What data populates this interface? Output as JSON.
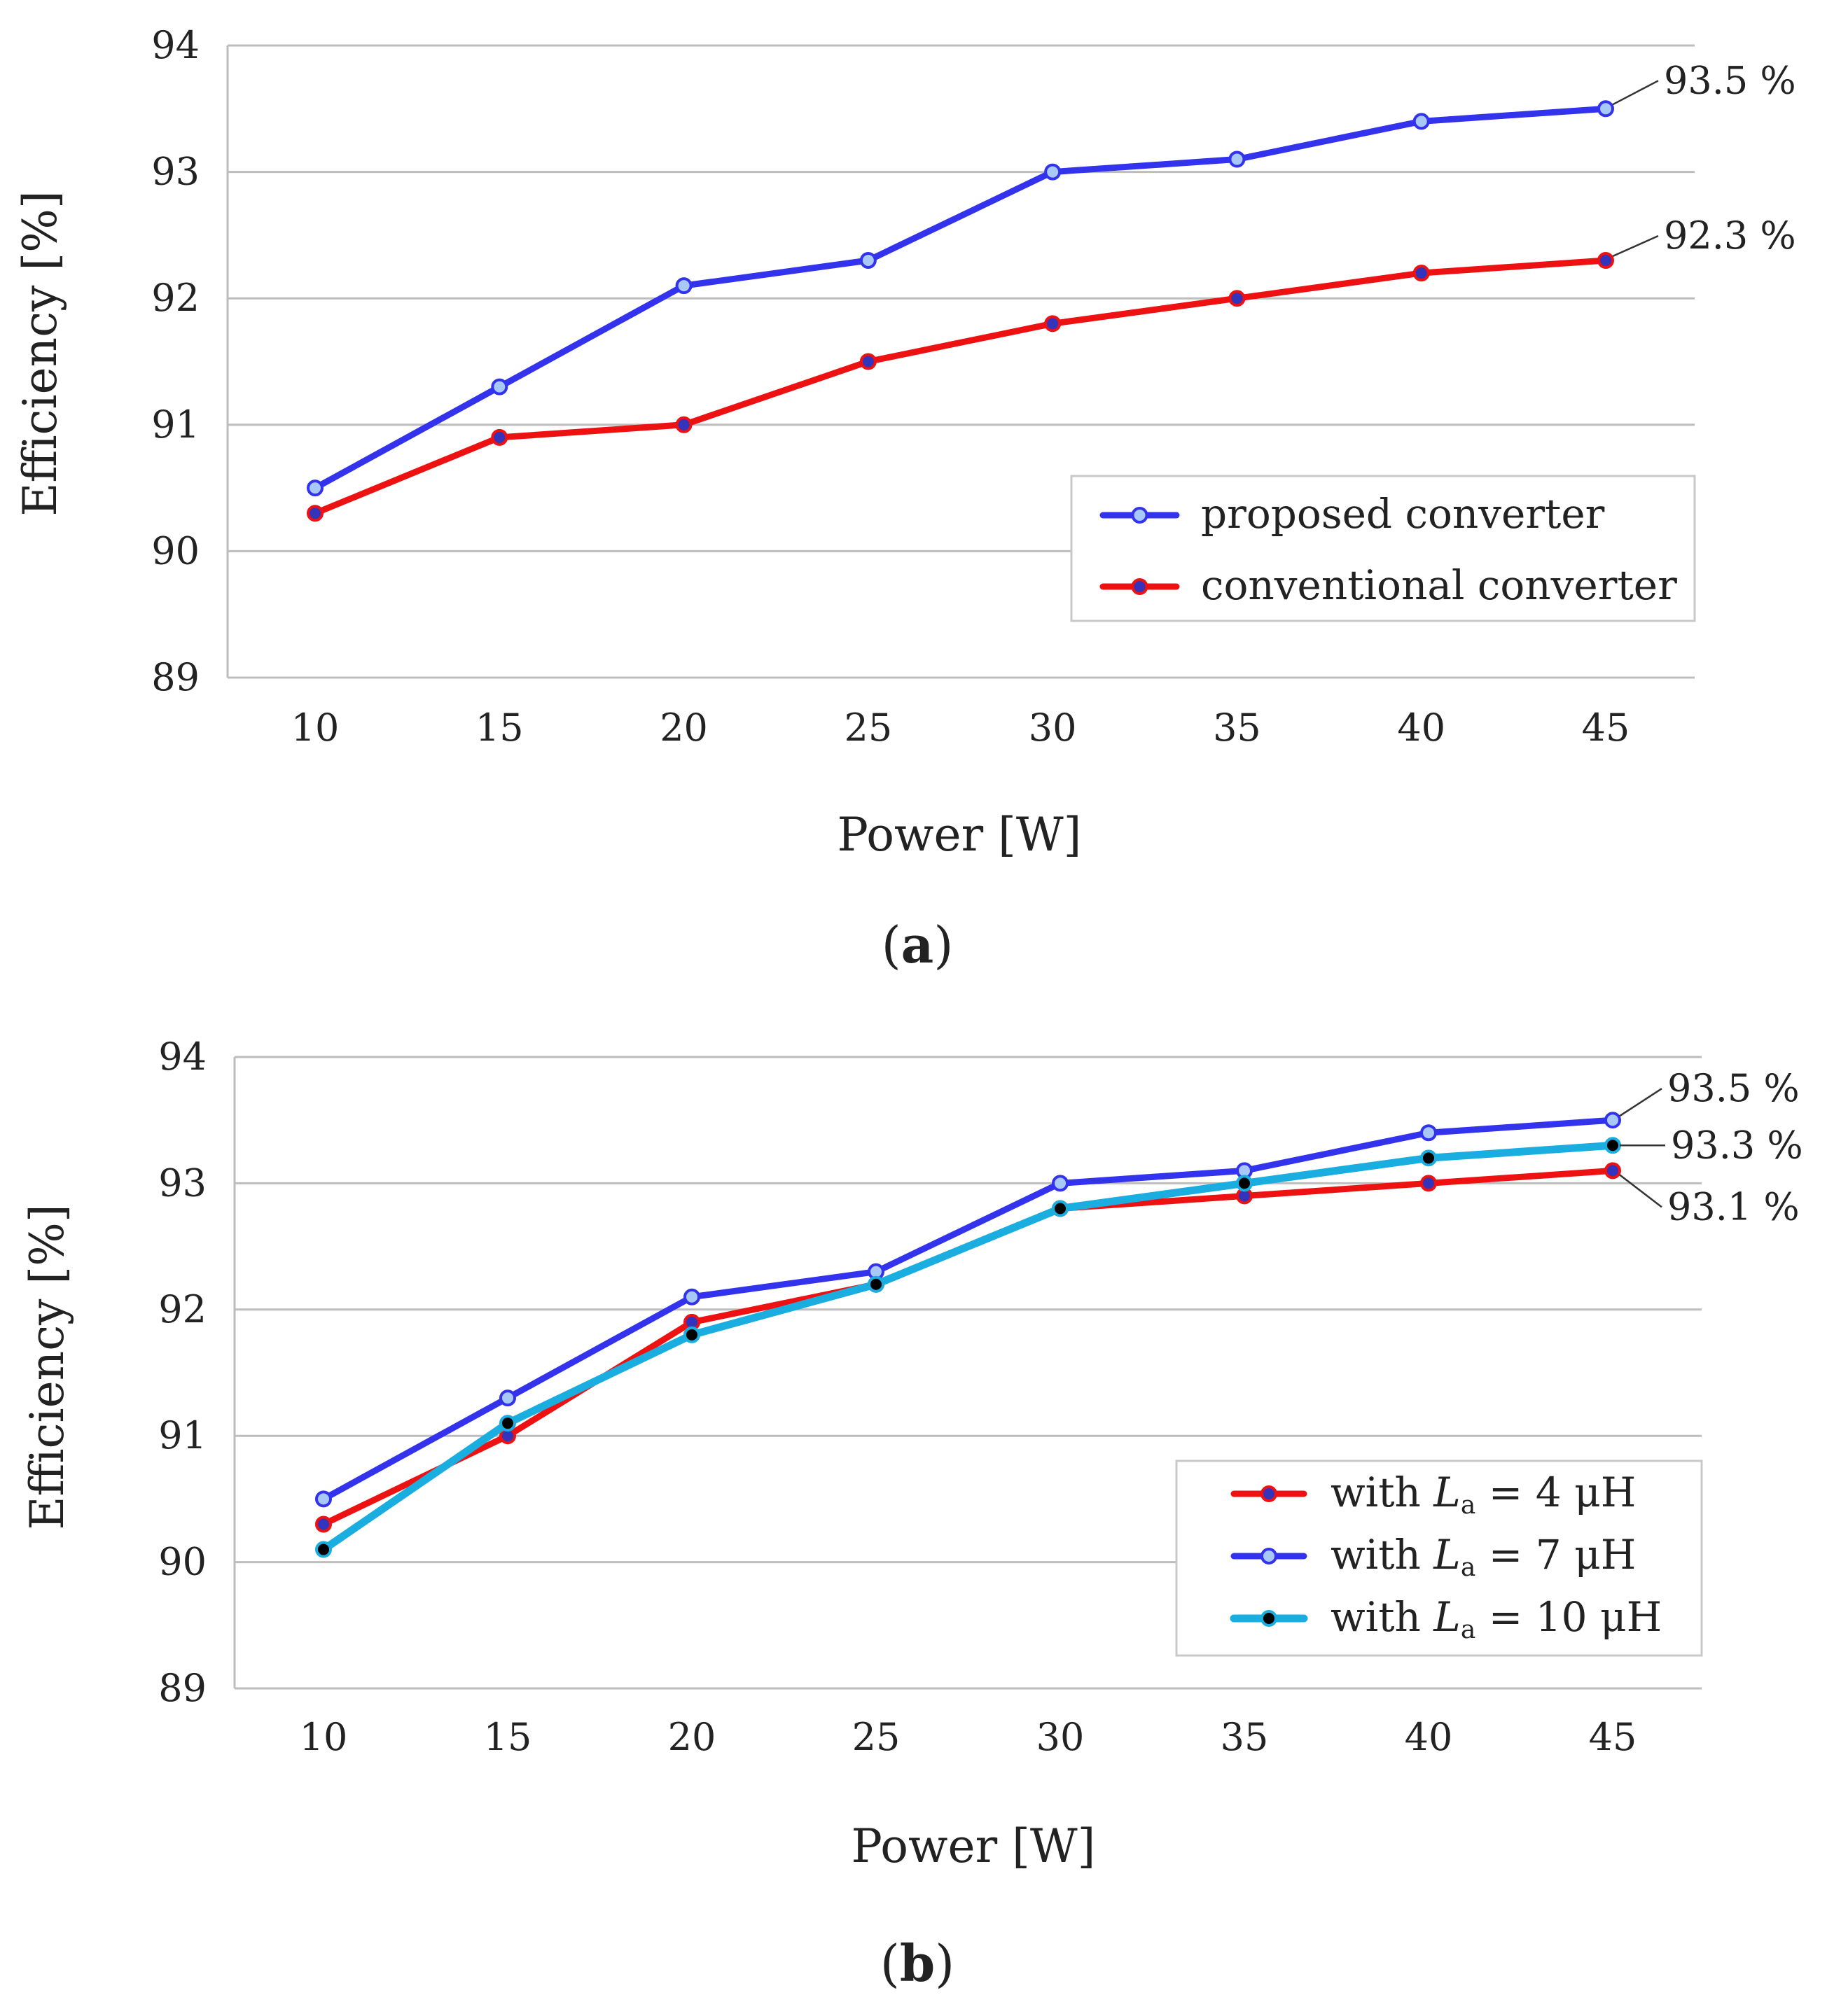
{
  "chart_data": [
    {
      "type": "line",
      "panel_label": "a",
      "xlabel": "Power [W]",
      "ylabel": "Efficiency [%]",
      "x": [
        10,
        15,
        20,
        25,
        30,
        35,
        40,
        45
      ],
      "x_ticks": [
        "10",
        "15",
        "20",
        "25",
        "30",
        "35",
        "40",
        "45"
      ],
      "ylim": [
        89,
        94
      ],
      "y_ticks": [
        "89",
        "90",
        "91",
        "92",
        "93",
        "94"
      ],
      "grid": true,
      "legend_position": "bottom-right",
      "series": [
        {
          "name": "proposed converter",
          "values": [
            90.5,
            91.3,
            92.1,
            92.3,
            93.0,
            93.1,
            93.4,
            93.5
          ],
          "color": "#3333ee",
          "marker_fill": "#a8c8f8",
          "legend_parts": [
            "proposed converter"
          ]
        },
        {
          "name": "conventional converter",
          "values": [
            90.3,
            90.9,
            91.0,
            91.5,
            91.8,
            92.0,
            92.2,
            92.3
          ],
          "color": "#ee1111",
          "marker_fill": "#3333bb",
          "legend_parts": [
            "conventional converter"
          ]
        }
      ],
      "annotations": [
        {
          "text": "93.5 %",
          "series": 0,
          "point": 7,
          "offset": "up-right"
        },
        {
          "text": "92.3 %",
          "series": 1,
          "point": 7,
          "offset": "up-right"
        }
      ]
    },
    {
      "type": "line",
      "panel_label": "b",
      "xlabel": "Power [W]",
      "ylabel": "Efficiency [%]",
      "x": [
        10,
        15,
        20,
        25,
        30,
        35,
        40,
        45
      ],
      "x_ticks": [
        "10",
        "15",
        "20",
        "25",
        "30",
        "35",
        "40",
        "45"
      ],
      "ylim": [
        89,
        94
      ],
      "y_ticks": [
        "89",
        "90",
        "91",
        "92",
        "93",
        "94"
      ],
      "grid": true,
      "legend_position": "bottom-right",
      "series": [
        {
          "name": "with La = 4 μH",
          "values": [
            90.3,
            91.0,
            91.9,
            92.2,
            92.8,
            92.9,
            93.0,
            93.1
          ],
          "color": "#ee1111",
          "marker_fill": "#3333bb",
          "legend_parts": [
            "with ",
            "L",
            "a",
            " = 4 μH"
          ]
        },
        {
          "name": "with La = 7 μH",
          "values": [
            90.5,
            91.3,
            92.1,
            92.3,
            93.0,
            93.1,
            93.4,
            93.5
          ],
          "color": "#3333ee",
          "marker_fill": "#a8c8f8",
          "legend_parts": [
            "with ",
            "L",
            "a",
            " = 7 μH"
          ]
        },
        {
          "name": "with La = 10 μH",
          "values": [
            90.1,
            91.1,
            91.8,
            92.2,
            92.8,
            93.0,
            93.2,
            93.3
          ],
          "color": "#1aaee0",
          "marker_fill": "#000000",
          "legend_parts": [
            "with ",
            "L",
            "a",
            " = 10 μH"
          ]
        }
      ],
      "annotations": [
        {
          "text": "93.5 %",
          "series": 1,
          "point": 7,
          "offset": "up-right"
        },
        {
          "text": "93.3 %",
          "series": 2,
          "point": 7,
          "offset": "right"
        },
        {
          "text": "93.1 %",
          "series": 0,
          "point": 7,
          "offset": "down-right"
        }
      ]
    }
  ]
}
